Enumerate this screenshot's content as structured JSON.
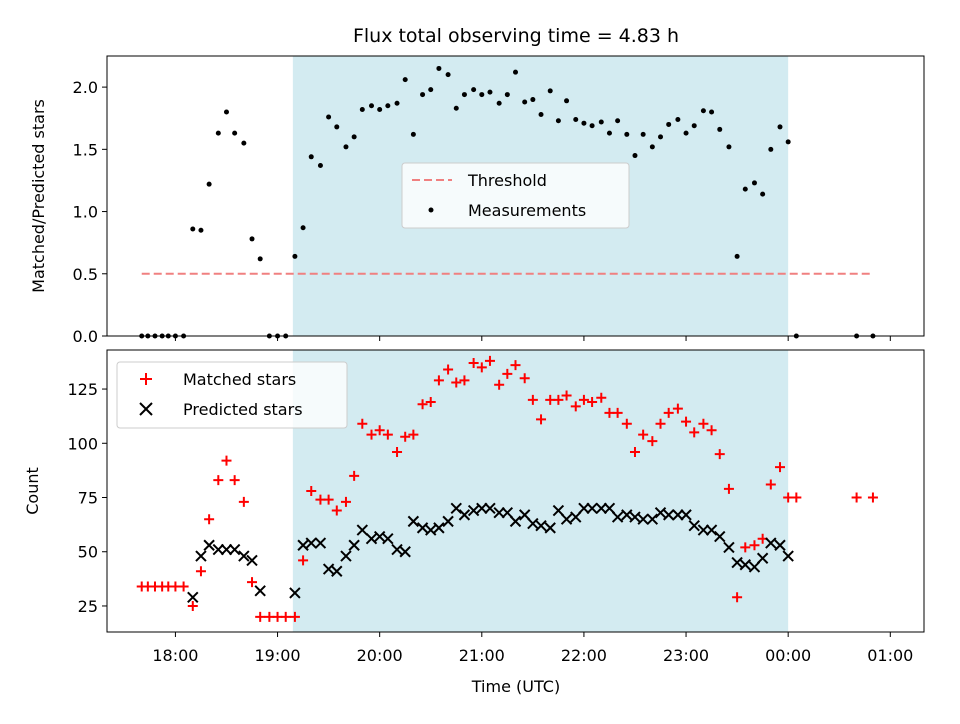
{
  "chart_data": [
    {
      "type": "scatter",
      "title": "Flux total observing time = 4.83 h",
      "ylabel": "Matched/Predicted stars",
      "xlabel": "",
      "xlim": [
        17.33,
        1.33
      ],
      "ylim": [
        0,
        2.25
      ],
      "yticks": [
        0.0,
        0.5,
        1.0,
        1.5,
        2.0
      ],
      "ytick_labels": [
        "0.0",
        "0.5",
        "1.0",
        "1.5",
        "2.0"
      ],
      "shaded_span": {
        "start": 19.15,
        "end": 24.0,
        "color": "#d3ebf1"
      },
      "legend": {
        "position": "center",
        "entries": [
          "Threshold",
          "Measurements"
        ]
      },
      "threshold": {
        "name": "Threshold",
        "value": 0.5,
        "x_range": [
          17.67,
          24.8
        ],
        "color": "#f08080"
      },
      "series": [
        {
          "name": "Measurements",
          "color": "#000000",
          "points": [
            [
              17.67,
              0.0
            ],
            [
              17.73,
              0.0
            ],
            [
              17.8,
              0.0
            ],
            [
              17.87,
              0.0
            ],
            [
              17.93,
              0.0
            ],
            [
              18.0,
              0.0
            ],
            [
              18.08,
              0.0
            ],
            [
              18.17,
              0.86
            ],
            [
              18.25,
              0.85
            ],
            [
              18.33,
              1.22
            ],
            [
              18.42,
              1.63
            ],
            [
              18.5,
              1.8
            ],
            [
              18.58,
              1.63
            ],
            [
              18.67,
              1.55
            ],
            [
              18.75,
              0.78
            ],
            [
              18.83,
              0.62
            ],
            [
              18.92,
              0.0
            ],
            [
              19.0,
              0.0
            ],
            [
              19.08,
              0.0
            ],
            [
              19.17,
              0.64
            ],
            [
              19.25,
              0.87
            ],
            [
              19.33,
              1.44
            ],
            [
              19.42,
              1.37
            ],
            [
              19.5,
              1.76
            ],
            [
              19.58,
              1.68
            ],
            [
              19.67,
              1.52
            ],
            [
              19.75,
              1.6
            ],
            [
              19.83,
              1.82
            ],
            [
              19.92,
              1.85
            ],
            [
              20.0,
              1.82
            ],
            [
              20.08,
              1.85
            ],
            [
              20.17,
              1.87
            ],
            [
              20.25,
              2.06
            ],
            [
              20.33,
              1.62
            ],
            [
              20.42,
              1.94
            ],
            [
              20.5,
              1.98
            ],
            [
              20.58,
              2.15
            ],
            [
              20.67,
              2.1
            ],
            [
              20.75,
              1.83
            ],
            [
              20.83,
              1.94
            ],
            [
              20.92,
              1.98
            ],
            [
              21.0,
              1.94
            ],
            [
              21.08,
              1.96
            ],
            [
              21.17,
              1.87
            ],
            [
              21.25,
              1.94
            ],
            [
              21.33,
              2.12
            ],
            [
              21.42,
              1.88
            ],
            [
              21.5,
              1.9
            ],
            [
              21.58,
              1.78
            ],
            [
              21.67,
              1.97
            ],
            [
              21.75,
              1.73
            ],
            [
              21.83,
              1.89
            ],
            [
              21.92,
              1.74
            ],
            [
              22.0,
              1.71
            ],
            [
              22.08,
              1.69
            ],
            [
              22.17,
              1.72
            ],
            [
              22.25,
              1.63
            ],
            [
              22.33,
              1.73
            ],
            [
              22.42,
              1.62
            ],
            [
              22.5,
              1.45
            ],
            [
              22.58,
              1.62
            ],
            [
              22.67,
              1.52
            ],
            [
              22.75,
              1.6
            ],
            [
              22.83,
              1.7
            ],
            [
              22.92,
              1.74
            ],
            [
              23.0,
              1.63
            ],
            [
              23.08,
              1.69
            ],
            [
              23.17,
              1.81
            ],
            [
              23.25,
              1.8
            ],
            [
              23.33,
              1.66
            ],
            [
              23.42,
              1.52
            ],
            [
              23.5,
              0.64
            ],
            [
              23.58,
              1.18
            ],
            [
              23.67,
              1.23
            ],
            [
              23.75,
              1.14
            ],
            [
              23.83,
              1.5
            ],
            [
              23.92,
              1.68
            ],
            [
              24.0,
              1.56
            ],
            [
              24.08,
              0.0
            ],
            [
              24.67,
              0.0
            ],
            [
              24.83,
              0.0
            ]
          ]
        }
      ]
    },
    {
      "type": "scatter",
      "title": "",
      "ylabel": "Count",
      "xlabel": "Time (UTC)",
      "xlim": [
        17.33,
        1.33
      ],
      "ylim": [
        13,
        143
      ],
      "yticks": [
        25,
        50,
        75,
        100,
        125
      ],
      "ytick_labels": [
        "25",
        "50",
        "75",
        "100",
        "125"
      ],
      "xticks": [
        18,
        19,
        20,
        21,
        22,
        23,
        24,
        25
      ],
      "xtick_labels": [
        "18:00",
        "19:00",
        "20:00",
        "21:00",
        "22:00",
        "23:00",
        "00:00",
        "01:00"
      ],
      "shaded_span": {
        "start": 19.15,
        "end": 24.0,
        "color": "#d3ebf1"
      },
      "legend": {
        "position": "top-left",
        "entries": [
          "Matched stars",
          "Predicted stars"
        ]
      },
      "series": [
        {
          "name": "Matched stars",
          "marker": "plus",
          "color": "#ff0000",
          "points": [
            [
              17.67,
              34
            ],
            [
              17.73,
              34
            ],
            [
              17.8,
              34
            ],
            [
              17.87,
              34
            ],
            [
              17.93,
              34
            ],
            [
              18.0,
              34
            ],
            [
              18.08,
              34
            ],
            [
              18.17,
              25
            ],
            [
              18.25,
              41
            ],
            [
              18.33,
              65
            ],
            [
              18.42,
              83
            ],
            [
              18.5,
              92
            ],
            [
              18.58,
              83
            ],
            [
              18.67,
              73
            ],
            [
              18.75,
              36
            ],
            [
              18.83,
              20
            ],
            [
              18.92,
              20
            ],
            [
              19.0,
              20
            ],
            [
              19.08,
              20
            ],
            [
              19.17,
              20
            ],
            [
              19.25,
              46
            ],
            [
              19.33,
              78
            ],
            [
              19.42,
              74
            ],
            [
              19.5,
              74
            ],
            [
              19.58,
              69
            ],
            [
              19.67,
              73
            ],
            [
              19.75,
              85
            ],
            [
              19.83,
              109
            ],
            [
              19.92,
              104
            ],
            [
              20.0,
              106
            ],
            [
              20.08,
              104
            ],
            [
              20.17,
              96
            ],
            [
              20.25,
              103
            ],
            [
              20.33,
              104
            ],
            [
              20.42,
              118
            ],
            [
              20.5,
              119
            ],
            [
              20.58,
              129
            ],
            [
              20.67,
              134
            ],
            [
              20.75,
              128
            ],
            [
              20.83,
              129
            ],
            [
              20.92,
              137
            ],
            [
              21.0,
              135
            ],
            [
              21.08,
              138
            ],
            [
              21.17,
              127
            ],
            [
              21.25,
              132
            ],
            [
              21.33,
              136
            ],
            [
              21.42,
              130
            ],
            [
              21.5,
              120
            ],
            [
              21.58,
              111
            ],
            [
              21.67,
              120
            ],
            [
              21.75,
              120
            ],
            [
              21.83,
              122
            ],
            [
              21.92,
              117
            ],
            [
              22.0,
              120
            ],
            [
              22.08,
              119
            ],
            [
              22.17,
              121
            ],
            [
              22.25,
              114
            ],
            [
              22.33,
              114
            ],
            [
              22.42,
              109
            ],
            [
              22.5,
              96
            ],
            [
              22.58,
              104
            ],
            [
              22.67,
              101
            ],
            [
              22.75,
              109
            ],
            [
              22.83,
              114
            ],
            [
              22.92,
              116
            ],
            [
              23.0,
              110
            ],
            [
              23.08,
              105
            ],
            [
              23.17,
              109
            ],
            [
              23.25,
              106
            ],
            [
              23.33,
              95
            ],
            [
              23.42,
              79
            ],
            [
              23.5,
              29
            ],
            [
              23.58,
              52
            ],
            [
              23.67,
              53
            ],
            [
              23.75,
              56
            ],
            [
              23.83,
              81
            ],
            [
              23.92,
              89
            ],
            [
              24.0,
              75
            ],
            [
              24.08,
              75
            ],
            [
              24.67,
              75
            ],
            [
              24.83,
              75
            ]
          ]
        },
        {
          "name": "Predicted stars",
          "marker": "x",
          "color": "#000000",
          "points": [
            [
              18.17,
              29
            ],
            [
              18.25,
              48
            ],
            [
              18.33,
              53
            ],
            [
              18.42,
              51
            ],
            [
              18.5,
              51
            ],
            [
              18.58,
              51
            ],
            [
              18.67,
              48
            ],
            [
              18.75,
              46
            ],
            [
              18.83,
              32
            ],
            [
              19.17,
              31
            ],
            [
              19.25,
              53
            ],
            [
              19.33,
              54
            ],
            [
              19.42,
              54
            ],
            [
              19.5,
              42
            ],
            [
              19.58,
              41
            ],
            [
              19.67,
              48
            ],
            [
              19.75,
              53
            ],
            [
              19.83,
              60
            ],
            [
              19.92,
              56
            ],
            [
              20.0,
              57
            ],
            [
              20.08,
              56
            ],
            [
              20.17,
              51
            ],
            [
              20.25,
              50
            ],
            [
              20.33,
              64
            ],
            [
              20.42,
              61
            ],
            [
              20.5,
              60
            ],
            [
              20.58,
              61
            ],
            [
              20.67,
              64
            ],
            [
              20.75,
              70
            ],
            [
              20.83,
              67
            ],
            [
              20.92,
              69
            ],
            [
              21.0,
              70
            ],
            [
              21.08,
              70
            ],
            [
              21.17,
              68
            ],
            [
              21.25,
              68
            ],
            [
              21.33,
              64
            ],
            [
              21.42,
              67
            ],
            [
              21.5,
              63
            ],
            [
              21.58,
              62
            ],
            [
              21.67,
              61
            ],
            [
              21.75,
              69
            ],
            [
              21.83,
              65
            ],
            [
              21.92,
              66
            ],
            [
              22.0,
              70
            ],
            [
              22.08,
              70
            ],
            [
              22.17,
              70
            ],
            [
              22.25,
              70
            ],
            [
              22.33,
              66
            ],
            [
              22.42,
              67
            ],
            [
              22.5,
              66
            ],
            [
              22.58,
              65
            ],
            [
              22.67,
              65
            ],
            [
              22.75,
              68
            ],
            [
              22.83,
              67
            ],
            [
              22.92,
              67
            ],
            [
              23.0,
              67
            ],
            [
              23.08,
              62
            ],
            [
              23.17,
              60
            ],
            [
              23.25,
              60
            ],
            [
              23.33,
              57
            ],
            [
              23.42,
              52
            ],
            [
              23.5,
              45
            ],
            [
              23.58,
              44
            ],
            [
              23.67,
              43
            ],
            [
              23.75,
              47
            ],
            [
              23.83,
              54
            ],
            [
              23.92,
              53
            ],
            [
              24.0,
              48
            ]
          ]
        }
      ]
    }
  ]
}
